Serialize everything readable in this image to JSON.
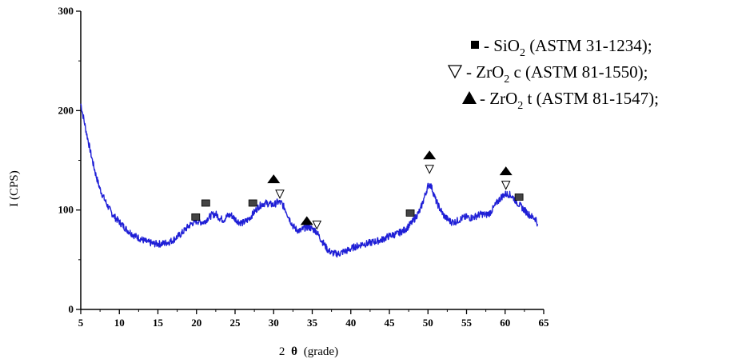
{
  "chart_data": {
    "type": "line",
    "title": "",
    "xlabel": {
      "prefix": "2",
      "symbol": "θ",
      "suffix": "(grade)"
    },
    "ylabel": "I (CPS)",
    "xlim": [
      5,
      65
    ],
    "ylim": [
      0,
      300
    ],
    "x_ticks": [
      5,
      10,
      15,
      20,
      25,
      30,
      35,
      40,
      45,
      50,
      55,
      60,
      65
    ],
    "y_ticks": [
      0,
      100,
      200,
      300
    ],
    "series": [
      {
        "color": "#1f1fd6",
        "points": [
          [
            5.0,
            207
          ],
          [
            5.3,
            195
          ],
          [
            5.6,
            183
          ],
          [
            6.0,
            168
          ],
          [
            6.5,
            150
          ],
          [
            7.0,
            134
          ],
          [
            7.5,
            121
          ],
          [
            8.0,
            112
          ],
          [
            8.5,
            104
          ],
          [
            9.0,
            97
          ],
          [
            9.5,
            92
          ],
          [
            10.0,
            88
          ],
          [
            10.5,
            84
          ],
          [
            11.0,
            80
          ],
          [
            11.5,
            77
          ],
          [
            12.0,
            74
          ],
          [
            12.5,
            72
          ],
          [
            13.0,
            70
          ],
          [
            13.5,
            68
          ],
          [
            14.0,
            67
          ],
          [
            14.5,
            66
          ],
          [
            15.0,
            66
          ],
          [
            15.5,
            66
          ],
          [
            16.0,
            67
          ],
          [
            16.5,
            68
          ],
          [
            17.0,
            70
          ],
          [
            17.5,
            73
          ],
          [
            18.0,
            76
          ],
          [
            18.5,
            80
          ],
          [
            19.0,
            84
          ],
          [
            19.5,
            87
          ],
          [
            20.0,
            89
          ],
          [
            20.5,
            88
          ],
          [
            21.0,
            88
          ],
          [
            21.5,
            92
          ],
          [
            22.0,
            95
          ],
          [
            22.5,
            96
          ],
          [
            23.0,
            92
          ],
          [
            23.5,
            90
          ],
          [
            24.0,
            94
          ],
          [
            24.5,
            95
          ],
          [
            25.0,
            91
          ],
          [
            25.5,
            88
          ],
          [
            26.0,
            87
          ],
          [
            26.5,
            89
          ],
          [
            27.0,
            93
          ],
          [
            27.5,
            98
          ],
          [
            28.0,
            103
          ],
          [
            28.5,
            106
          ],
          [
            29.0,
            107
          ],
          [
            29.5,
            106
          ],
          [
            30.0,
            105
          ],
          [
            30.5,
            108
          ],
          [
            31.0,
            107
          ],
          [
            31.5,
            101
          ],
          [
            32.0,
            92
          ],
          [
            32.5,
            84
          ],
          [
            33.0,
            80
          ],
          [
            33.5,
            79
          ],
          [
            34.0,
            82
          ],
          [
            34.5,
            83
          ],
          [
            35.0,
            81
          ],
          [
            35.5,
            79
          ],
          [
            36.0,
            72
          ],
          [
            36.5,
            66
          ],
          [
            37.0,
            60
          ],
          [
            37.5,
            57
          ],
          [
            38.0,
            56
          ],
          [
            38.5,
            56
          ],
          [
            39.0,
            58
          ],
          [
            39.5,
            59
          ],
          [
            40.0,
            61
          ],
          [
            40.5,
            63
          ],
          [
            41.0,
            64
          ],
          [
            41.5,
            66
          ],
          [
            42.0,
            66
          ],
          [
            42.5,
            67
          ],
          [
            43.0,
            68
          ],
          [
            43.5,
            69
          ],
          [
            44.0,
            70
          ],
          [
            44.5,
            72
          ],
          [
            45.0,
            74
          ],
          [
            45.5,
            75
          ],
          [
            46.0,
            76
          ],
          [
            46.5,
            78
          ],
          [
            47.0,
            80
          ],
          [
            47.5,
            84
          ],
          [
            48.0,
            88
          ],
          [
            48.5,
            94
          ],
          [
            49.0,
            100
          ],
          [
            49.5,
            112
          ],
          [
            50.0,
            124
          ],
          [
            50.3,
            126
          ],
          [
            50.6,
            120
          ],
          [
            51.0,
            110
          ],
          [
            51.5,
            102
          ],
          [
            52.0,
            95
          ],
          [
            52.5,
            91
          ],
          [
            53.0,
            88
          ],
          [
            53.5,
            88
          ],
          [
            54.0,
            90
          ],
          [
            54.5,
            92
          ],
          [
            55.0,
            93
          ],
          [
            55.5,
            92
          ],
          [
            56.0,
            93
          ],
          [
            56.5,
            95
          ],
          [
            57.0,
            96
          ],
          [
            57.5,
            95
          ],
          [
            58.0,
            97
          ],
          [
            58.5,
            102
          ],
          [
            59.0,
            108
          ],
          [
            59.5,
            113
          ],
          [
            60.0,
            116
          ],
          [
            60.5,
            116
          ],
          [
            61.0,
            113
          ],
          [
            61.5,
            108
          ],
          [
            62.0,
            104
          ],
          [
            62.5,
            100
          ],
          [
            63.0,
            96
          ],
          [
            63.5,
            93
          ],
          [
            64.0,
            91
          ],
          [
            64.2,
            86
          ]
        ]
      }
    ],
    "markers": [
      {
        "shape": "square",
        "x": 19.9,
        "y": 93
      },
      {
        "shape": "square",
        "x": 21.2,
        "y": 107
      },
      {
        "shape": "square",
        "x": 27.3,
        "y": 107
      },
      {
        "shape": "square",
        "x": 47.7,
        "y": 97
      },
      {
        "shape": "square",
        "x": 61.8,
        "y": 113
      },
      {
        "shape": "triangle-filled",
        "x": 30.0,
        "y": 131
      },
      {
        "shape": "triangle-filled",
        "x": 34.3,
        "y": 89
      },
      {
        "shape": "triangle-filled",
        "x": 50.2,
        "y": 155
      },
      {
        "shape": "triangle-filled",
        "x": 60.1,
        "y": 139
      },
      {
        "shape": "triangle-open",
        "x": 30.8,
        "y": 116
      },
      {
        "shape": "triangle-open",
        "x": 35.6,
        "y": 85
      },
      {
        "shape": "triangle-open",
        "x": 50.2,
        "y": 141
      },
      {
        "shape": "triangle-open",
        "x": 60.1,
        "y": 125
      }
    ],
    "legend": {
      "position": "top-right",
      "entries": [
        {
          "symbol": "square",
          "prefix": "- SiO",
          "sub": "2",
          "suffix": " (ASTM 31-1234);"
        },
        {
          "symbol": "triangle-open",
          "prefix": "- ZrO",
          "sub": "2",
          "suffix": " c (ASTM 81-1550);"
        },
        {
          "symbol": "triangle-filled",
          "prefix": "- ZrO",
          "sub": "2",
          "suffix": " t (ASTM 81-1547);"
        }
      ]
    },
    "grid": false
  }
}
